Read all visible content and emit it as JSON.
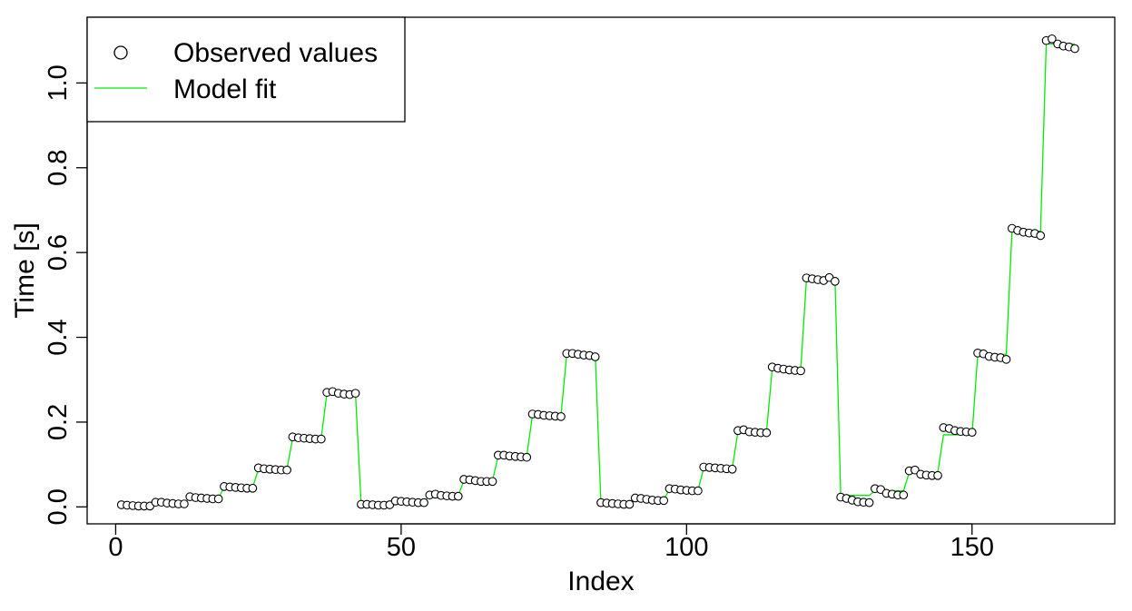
{
  "chart_data": {
    "type": "line",
    "title": "",
    "xlabel": "Index",
    "ylabel": "Time [s]",
    "xlim": [
      -5,
      175
    ],
    "ylim": [
      -0.04,
      1.155
    ],
    "x_ticks": [
      0,
      50,
      100,
      150
    ],
    "y_ticks": [
      0.0,
      0.2,
      0.4,
      0.6,
      0.8,
      1.0
    ],
    "x_tick_labels": [
      "0",
      "50",
      "100",
      "150"
    ],
    "y_tick_labels": [
      "0.0",
      "0.2",
      "0.4",
      "0.6",
      "0.8",
      "1.0"
    ],
    "grid": false,
    "legend_position": "top-left",
    "series": [
      {
        "name": "Observed values",
        "style": "points",
        "color": "#000000",
        "fill": "#ffffff",
        "x": [
          1,
          2,
          3,
          4,
          5,
          6,
          7,
          8,
          9,
          10,
          11,
          12,
          13,
          14,
          15,
          16,
          17,
          18,
          19,
          20,
          21,
          22,
          23,
          24,
          25,
          26,
          27,
          28,
          29,
          30,
          31,
          32,
          33,
          34,
          35,
          36,
          37,
          38,
          39,
          40,
          41,
          42,
          43,
          44,
          45,
          46,
          47,
          48,
          49,
          50,
          51,
          52,
          53,
          54,
          55,
          56,
          57,
          58,
          59,
          60,
          61,
          62,
          63,
          64,
          65,
          66,
          67,
          68,
          69,
          70,
          71,
          72,
          73,
          74,
          75,
          76,
          77,
          78,
          79,
          80,
          81,
          82,
          83,
          84,
          85,
          86,
          87,
          88,
          89,
          90,
          91,
          92,
          93,
          94,
          95,
          96,
          97,
          98,
          99,
          100,
          101,
          102,
          103,
          104,
          105,
          106,
          107,
          108,
          109,
          110,
          111,
          112,
          113,
          114,
          115,
          116,
          117,
          118,
          119,
          120,
          121,
          122,
          123,
          124,
          125,
          126,
          127,
          128,
          129,
          130,
          131,
          132,
          133,
          134,
          135,
          136,
          137,
          138,
          139,
          140,
          141,
          142,
          143,
          144,
          145,
          146,
          147,
          148,
          149,
          150,
          151,
          152,
          153,
          154,
          155,
          156,
          157,
          158,
          159,
          160,
          161,
          162,
          163,
          164,
          165,
          166,
          167,
          168
        ],
        "y": [
          0.005,
          0.004,
          0.003,
          0.002,
          0.002,
          0.002,
          0.011,
          0.011,
          0.009,
          0.008,
          0.007,
          0.007,
          0.024,
          0.022,
          0.021,
          0.02,
          0.019,
          0.019,
          0.048,
          0.047,
          0.046,
          0.045,
          0.044,
          0.044,
          0.092,
          0.09,
          0.089,
          0.088,
          0.087,
          0.087,
          0.165,
          0.163,
          0.162,
          0.161,
          0.16,
          0.16,
          0.27,
          0.272,
          0.268,
          0.266,
          0.265,
          0.268,
          0.006,
          0.006,
          0.005,
          0.004,
          0.004,
          0.005,
          0.014,
          0.013,
          0.012,
          0.011,
          0.01,
          0.01,
          0.028,
          0.03,
          0.027,
          0.026,
          0.025,
          0.025,
          0.065,
          0.064,
          0.062,
          0.06,
          0.06,
          0.06,
          0.122,
          0.122,
          0.12,
          0.119,
          0.118,
          0.117,
          0.219,
          0.218,
          0.216,
          0.215,
          0.214,
          0.213,
          0.362,
          0.362,
          0.36,
          0.358,
          0.357,
          0.354,
          0.01,
          0.009,
          0.008,
          0.007,
          0.006,
          0.006,
          0.021,
          0.02,
          0.018,
          0.016,
          0.015,
          0.015,
          0.043,
          0.042,
          0.04,
          0.039,
          0.038,
          0.038,
          0.094,
          0.093,
          0.092,
          0.091,
          0.09,
          0.089,
          0.18,
          0.182,
          0.177,
          0.176,
          0.175,
          0.175,
          0.33,
          0.327,
          0.325,
          0.323,
          0.322,
          0.321,
          0.54,
          0.538,
          0.536,
          0.534,
          0.541,
          0.532,
          0.023,
          0.02,
          0.016,
          0.012,
          0.011,
          0.01,
          0.043,
          0.041,
          0.032,
          0.03,
          0.028,
          0.028,
          0.085,
          0.087,
          0.077,
          0.075,
          0.074,
          0.074,
          0.187,
          0.185,
          0.18,
          0.178,
          0.177,
          0.176,
          0.363,
          0.361,
          0.355,
          0.353,
          0.352,
          0.348,
          0.657,
          0.652,
          0.648,
          0.646,
          0.645,
          0.64,
          1.1,
          1.104,
          1.092,
          1.087,
          1.085,
          1.081
        ]
      },
      {
        "name": "Model fit",
        "style": "line",
        "color": "#00ee00",
        "x": [
          1,
          2,
          3,
          4,
          5,
          6,
          7,
          8,
          9,
          10,
          11,
          12,
          13,
          14,
          15,
          16,
          17,
          18,
          19,
          20,
          21,
          22,
          23,
          24,
          25,
          26,
          27,
          28,
          29,
          30,
          31,
          32,
          33,
          34,
          35,
          36,
          37,
          38,
          39,
          40,
          41,
          42,
          43,
          44,
          45,
          46,
          47,
          48,
          49,
          50,
          51,
          52,
          53,
          54,
          55,
          56,
          57,
          58,
          59,
          60,
          61,
          62,
          63,
          64,
          65,
          66,
          67,
          68,
          69,
          70,
          71,
          72,
          73,
          74,
          75,
          76,
          77,
          78,
          79,
          80,
          81,
          82,
          83,
          84,
          85,
          86,
          87,
          88,
          89,
          90,
          91,
          92,
          93,
          94,
          95,
          96,
          97,
          98,
          99,
          100,
          101,
          102,
          103,
          104,
          105,
          106,
          107,
          108,
          109,
          110,
          111,
          112,
          113,
          114,
          115,
          116,
          117,
          118,
          119,
          120,
          121,
          122,
          123,
          124,
          125,
          126,
          127,
          128,
          129,
          130,
          131,
          132,
          133,
          134,
          135,
          136,
          137,
          138,
          139,
          140,
          141,
          142,
          143,
          144,
          145,
          146,
          147,
          148,
          149,
          150,
          151,
          152,
          153,
          154,
          155,
          156,
          157,
          158,
          159,
          160,
          161,
          162,
          163,
          164,
          165,
          166,
          167,
          168
        ],
        "y": [
          0.003,
          0.003,
          0.003,
          0.003,
          0.003,
          0.003,
          0.009,
          0.009,
          0.009,
          0.009,
          0.009,
          0.009,
          0.021,
          0.021,
          0.021,
          0.021,
          0.021,
          0.021,
          0.046,
          0.046,
          0.046,
          0.046,
          0.046,
          0.046,
          0.089,
          0.089,
          0.089,
          0.089,
          0.089,
          0.089,
          0.162,
          0.162,
          0.162,
          0.162,
          0.162,
          0.162,
          0.268,
          0.268,
          0.268,
          0.268,
          0.268,
          0.268,
          0.005,
          0.005,
          0.005,
          0.005,
          0.005,
          0.005,
          0.012,
          0.012,
          0.012,
          0.012,
          0.012,
          0.012,
          0.027,
          0.027,
          0.027,
          0.027,
          0.027,
          0.027,
          0.062,
          0.062,
          0.062,
          0.062,
          0.062,
          0.062,
          0.12,
          0.12,
          0.12,
          0.12,
          0.12,
          0.12,
          0.216,
          0.216,
          0.216,
          0.216,
          0.216,
          0.216,
          0.359,
          0.359,
          0.359,
          0.359,
          0.359,
          0.359,
          0.008,
          0.008,
          0.008,
          0.008,
          0.008,
          0.008,
          0.018,
          0.018,
          0.018,
          0.018,
          0.018,
          0.018,
          0.04,
          0.04,
          0.04,
          0.04,
          0.04,
          0.04,
          0.091,
          0.091,
          0.091,
          0.091,
          0.091,
          0.091,
          0.178,
          0.178,
          0.178,
          0.178,
          0.178,
          0.178,
          0.325,
          0.325,
          0.325,
          0.325,
          0.325,
          0.325,
          0.537,
          0.537,
          0.537,
          0.537,
          0.537,
          0.537,
          0.027,
          0.027,
          0.027,
          0.027,
          0.027,
          0.027,
          0.038,
          0.038,
          0.038,
          0.038,
          0.038,
          0.038,
          0.081,
          0.081,
          0.081,
          0.081,
          0.081,
          0.081,
          0.17,
          0.17,
          0.17,
          0.17,
          0.17,
          0.17,
          0.36,
          0.36,
          0.36,
          0.36,
          0.36,
          0.36,
          0.65,
          0.65,
          0.65,
          0.65,
          0.65,
          0.65,
          1.092,
          1.092,
          1.092,
          1.092,
          1.092,
          1.092
        ]
      }
    ]
  }
}
